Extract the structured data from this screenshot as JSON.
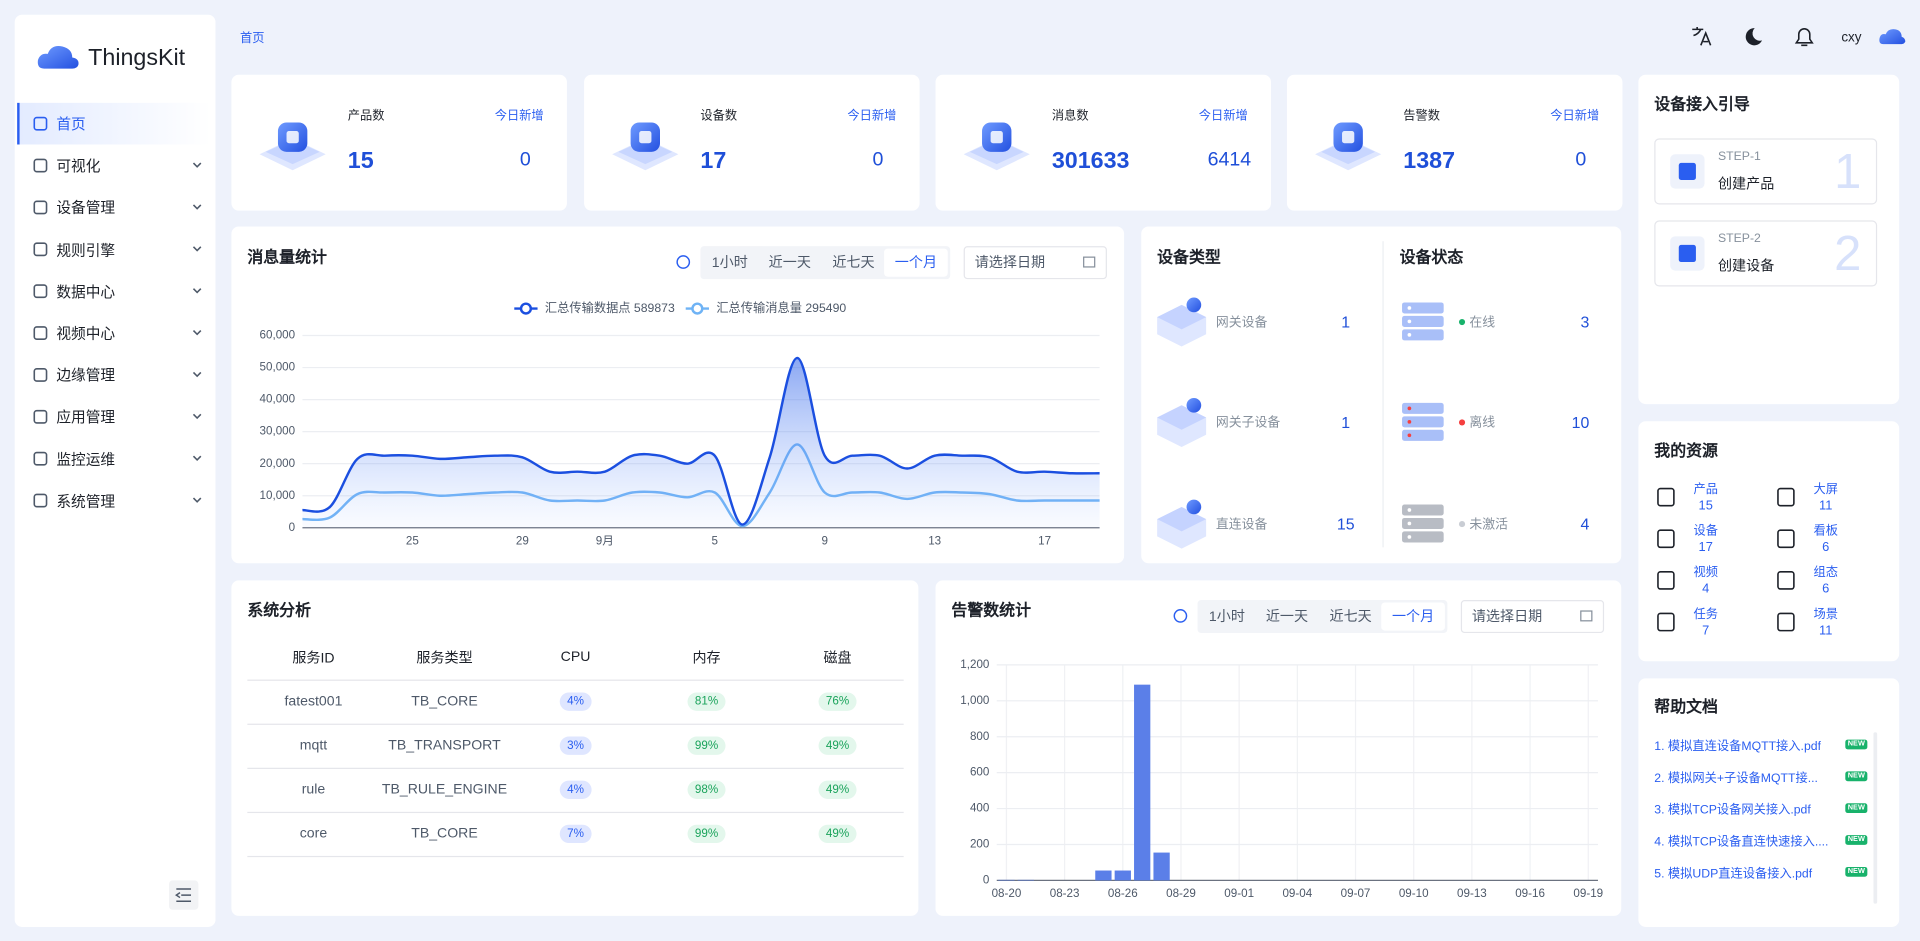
{
  "sidebar": {
    "logo": "ThingsKit",
    "menu": [
      "首页",
      "可视化",
      "设备管理",
      "规则引擎",
      "数据中心",
      "视频中心",
      "边缘管理",
      "应用管理",
      "监控运维",
      "系统管理"
    ]
  },
  "header": {
    "breadcrumb": "首页",
    "user": "cxy"
  },
  "stats": [
    {
      "label": "产品数",
      "today_label": "今日新增",
      "value": 15,
      "today": 0
    },
    {
      "label": "设备数",
      "today_label": "今日新增",
      "value": 17,
      "today": 0
    },
    {
      "label": "消息数",
      "today_label": "今日新增",
      "value": 301633,
      "today": 6414
    },
    {
      "label": "告警数",
      "today_label": "今日新增",
      "value": 1387,
      "today": 0
    }
  ],
  "message_controls": {
    "ranges": [
      "1小时",
      "近一天",
      "近七天",
      "一个月"
    ],
    "date_placeholder": "请选择日期"
  },
  "alarm_controls": {
    "ranges": [
      "1小时",
      "近一天",
      "近七天",
      "一个月"
    ],
    "date_placeholder": "请选择日期"
  },
  "chart_data": [
    {
      "type": "line",
      "title": "消息量统计",
      "categories": [
        null,
        null,
        null,
        null,
        "25",
        null,
        null,
        null,
        "29",
        null,
        null,
        "9月",
        null,
        null,
        null,
        "5",
        null,
        null,
        null,
        "9",
        null,
        null,
        null,
        "13",
        null,
        null,
        null,
        "17",
        null,
        null
      ],
      "series": [
        {
          "name": "汇总传输数据点 589873",
          "color": "#1b4fe0",
          "values": [
            5500,
            6500,
            21500,
            22500,
            22500,
            21500,
            22000,
            22500,
            22000,
            17500,
            17500,
            17500,
            22500,
            22500,
            20000,
            22500,
            1000,
            22000,
            53000,
            22500,
            22500,
            22500,
            18500,
            22500,
            22500,
            22000,
            17500,
            17500,
            17000,
            17000
          ]
        },
        {
          "name": "汇总传输消息量 295490",
          "color": "#6fb3f5",
          "values": [
            2700,
            3200,
            10500,
            11000,
            11000,
            10000,
            10500,
            11000,
            11000,
            8500,
            8500,
            8500,
            11000,
            11000,
            9500,
            11000,
            500,
            11000,
            26000,
            11000,
            11000,
            11000,
            9000,
            11000,
            11000,
            10500,
            8500,
            8500,
            8500,
            8500
          ]
        }
      ],
      "ylim": [
        0,
        60000
      ],
      "yticks": [
        0,
        {
          "value": 10000,
          "label": "10,000"
        },
        {
          "value": 20000,
          "label": "20,000"
        },
        {
          "value": 30000,
          "label": "30,000"
        },
        {
          "value": 40000,
          "label": "40,000"
        },
        {
          "value": 50000,
          "label": "50,000"
        },
        {
          "value": 60000,
          "label": "60,000"
        }
      ],
      "grid": true
    },
    {
      "type": "bar",
      "title": "告警数统计",
      "categories": [
        "08-20",
        null,
        null,
        "08-23",
        null,
        null,
        "08-26",
        null,
        null,
        "08-29",
        null,
        null,
        "09-01",
        null,
        null,
        "09-04",
        null,
        null,
        "09-07",
        null,
        null,
        "09-10",
        null,
        null,
        "09-13",
        null,
        null,
        "09-16",
        null,
        null,
        "09-19"
      ],
      "values": [
        3,
        3,
        0,
        0,
        0,
        55,
        55,
        1090,
        155,
        0,
        0,
        0,
        0,
        0,
        0,
        0,
        0,
        0,
        0,
        0,
        0,
        0,
        0,
        0,
        0,
        0,
        0,
        0,
        0,
        0,
        0
      ],
      "color": "#5b7fe8",
      "ylim": [
        0,
        1200
      ],
      "yticks": [
        0,
        200,
        400,
        600,
        800,
        {
          "value": 1000,
          "label": "1,000"
        },
        {
          "value": 1200,
          "label": "1,200"
        }
      ],
      "grid": true
    }
  ],
  "devices": {
    "type_title": "设备类型",
    "status_title": "设备状态",
    "types": [
      {
        "label": "网关设备",
        "count": 1
      },
      {
        "label": "网关子设备",
        "count": 1
      },
      {
        "label": "直连设备",
        "count": 15
      }
    ],
    "statuses": [
      {
        "label": "在线",
        "count": 3
      },
      {
        "label": "离线",
        "count": 10
      },
      {
        "label": "未激活",
        "count": 4
      }
    ]
  },
  "guide": {
    "title": "设备接入引导",
    "steps": [
      {
        "step": "STEP-1",
        "label": "创建产品",
        "number": 1
      },
      {
        "step": "STEP-2",
        "label": "创建设备",
        "number": 2
      }
    ]
  },
  "resources": {
    "title": "我的资源",
    "items": [
      {
        "label": "产品",
        "count": 15
      },
      {
        "label": "大屏",
        "count": 11
      },
      {
        "label": "设备",
        "count": 17
      },
      {
        "label": "看板",
        "count": 6
      },
      {
        "label": "视频",
        "count": 4
      },
      {
        "label": "组态",
        "count": 6
      },
      {
        "label": "任务",
        "count": 7
      },
      {
        "label": "场景",
        "count": 11
      }
    ]
  },
  "help": {
    "title": "帮助文档",
    "badge": "NEW",
    "docs": [
      "1. 模拟直连设备MQTT接入.pdf",
      "2. 模拟网关+子设备MQTT接...",
      "3. 模拟TCP设备网关接入.pdf",
      "4. 模拟TCP设备直连快速接入....",
      "5. 模拟UDP直连设备接入.pdf"
    ]
  },
  "analysis": {
    "title": "系统分析",
    "columns": [
      "服务ID",
      "服务类型",
      "CPU",
      "内存",
      "磁盘"
    ],
    "rows": [
      [
        "fatest001",
        "TB_CORE",
        "4%",
        "81%",
        "76%"
      ],
      [
        "mqtt",
        "TB_TRANSPORT",
        "3%",
        "99%",
        "49%"
      ],
      [
        "rule",
        "TB_RULE_ENGINE",
        "4%",
        "98%",
        "49%"
      ],
      [
        "core",
        "TB_CORE",
        "7%",
        "99%",
        "49%"
      ]
    ]
  }
}
